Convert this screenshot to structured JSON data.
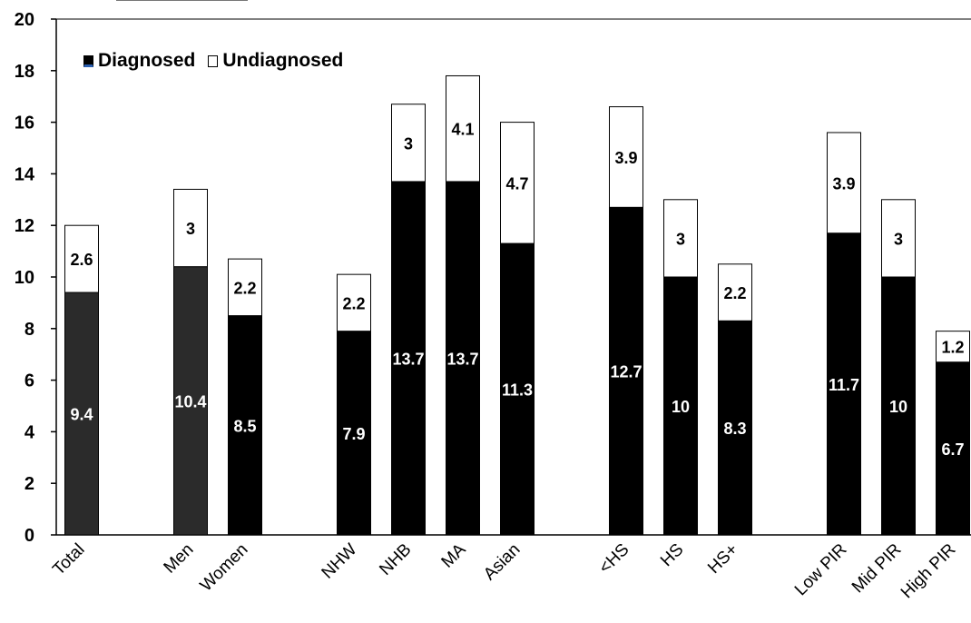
{
  "chart_data": {
    "type": "bar",
    "stacked": true,
    "categories": [
      "Total",
      "Men",
      "Women",
      "NHW",
      "NHB",
      "MA",
      "Asian",
      "<HS",
      "HS",
      "HS+",
      "Low PIR",
      "Mid PIR",
      "High PIR"
    ],
    "series": [
      {
        "name": "Diagnosed",
        "values": [
          9.4,
          10.4,
          8.5,
          7.9,
          13.7,
          13.7,
          11.3,
          12.7,
          10,
          8.3,
          11.7,
          10,
          6.7
        ]
      },
      {
        "name": "Undiagnosed",
        "values": [
          2.6,
          3,
          2.2,
          2.2,
          3,
          4.1,
          4.7,
          3.9,
          3,
          2.2,
          3.9,
          3,
          1.2
        ]
      }
    ],
    "ylim": [
      0,
      20
    ],
    "yticks": [
      0,
      2,
      4,
      6,
      8,
      10,
      12,
      14,
      16,
      18,
      20
    ],
    "grid": false,
    "legend_position": "top-left",
    "colors": {
      "diagnosed": "#000000",
      "diagnosed_dark": "#2b2b2b",
      "undiagnosed": "#ffffff"
    }
  }
}
